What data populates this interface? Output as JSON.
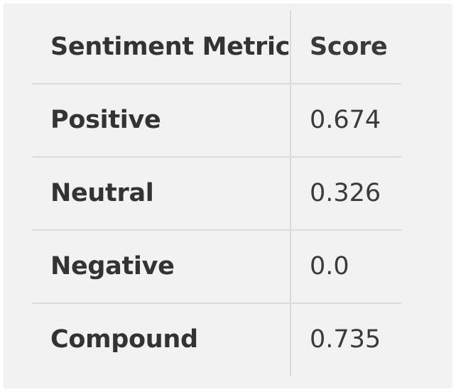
{
  "table": {
    "headers": {
      "metric": "Sentiment Metric",
      "score": "Score"
    },
    "rows": [
      {
        "metric": "Positive",
        "score": "0.674"
      },
      {
        "metric": "Neutral",
        "score": "0.326"
      },
      {
        "metric": "Negative",
        "score": "0.0"
      },
      {
        "metric": "Compound",
        "score": "0.735"
      }
    ]
  },
  "colors": {
    "background": "#f2f2f2",
    "text": "#333333",
    "divider": "#dcdcdc"
  }
}
